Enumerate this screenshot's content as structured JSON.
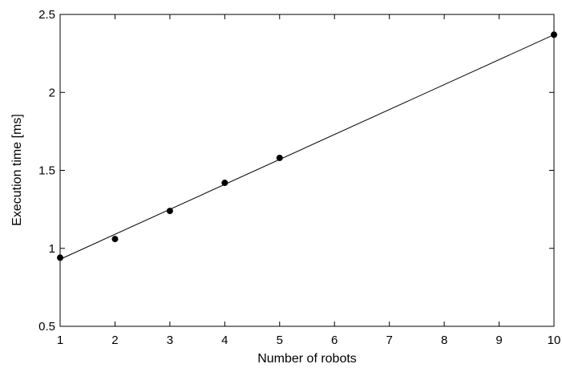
{
  "chart_data": {
    "type": "scatter",
    "title": "",
    "xlabel": "Number of robots",
    "ylabel": "Execution time [ms]",
    "xlim": [
      1,
      10
    ],
    "ylim": [
      0.5,
      2.5
    ],
    "grid": false,
    "xticks": [
      {
        "value": 1,
        "label": "1"
      },
      {
        "value": 2,
        "label": "2"
      },
      {
        "value": 3,
        "label": "3"
      },
      {
        "value": 4,
        "label": "4"
      },
      {
        "value": 5,
        "label": "5"
      },
      {
        "value": 6,
        "label": "6"
      },
      {
        "value": 7,
        "label": "7"
      },
      {
        "value": 8,
        "label": "8"
      },
      {
        "value": 9,
        "label": "9"
      },
      {
        "value": 10,
        "label": "10"
      }
    ],
    "yticks": [
      {
        "value": 0.5,
        "label": "0.5"
      },
      {
        "value": 1,
        "label": "1"
      },
      {
        "value": 1.5,
        "label": "1.5"
      },
      {
        "value": 2,
        "label": "2"
      },
      {
        "value": 2.5,
        "label": "2.5"
      }
    ],
    "series": [
      {
        "type": "scatter",
        "marker": "filled-circle",
        "color": "#000000",
        "x": [
          1,
          2,
          3,
          4,
          5,
          10
        ],
        "y": [
          0.94,
          1.06,
          1.24,
          1.42,
          1.58,
          2.37
        ]
      },
      {
        "type": "line",
        "color": "#000000",
        "x": [
          1,
          10
        ],
        "y": [
          0.93,
          2.37
        ]
      }
    ]
  }
}
